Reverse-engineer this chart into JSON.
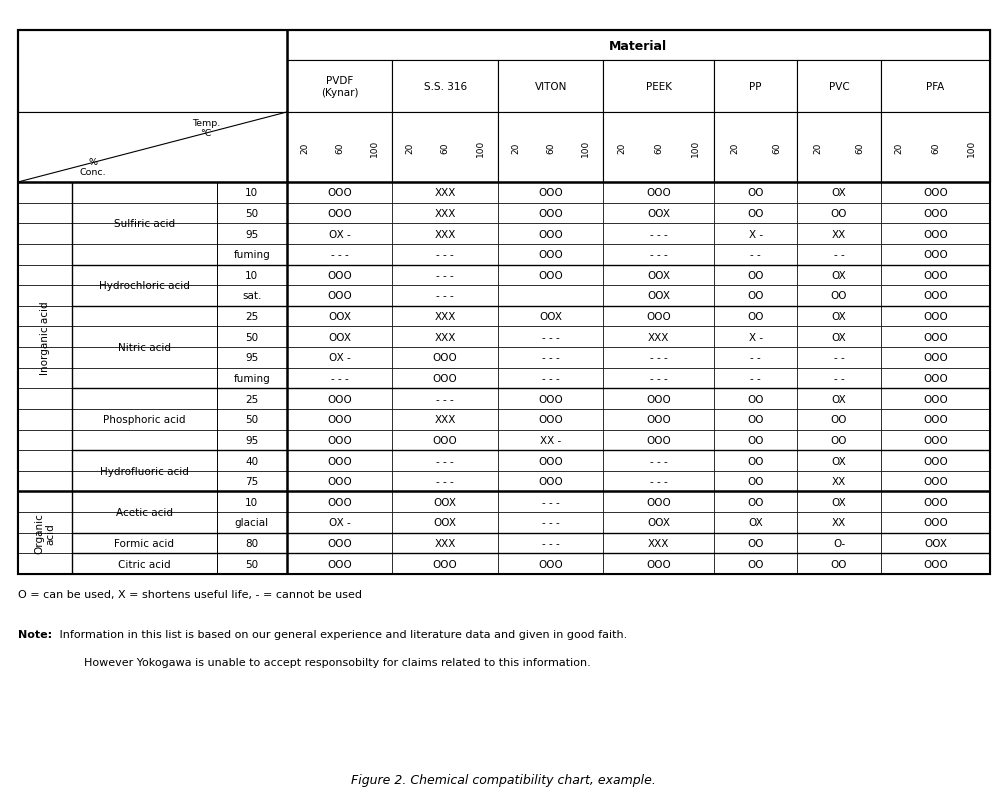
{
  "title": "Figure 2. Chemical compatibility chart, example.",
  "material_header": "Material",
  "materials": [
    "PVDF\n(Kynar)",
    "S.S. 316",
    "VITON",
    "PEEK",
    "PP",
    "PVC",
    "PFA"
  ],
  "temp_ticks": [
    [
      "20",
      "60",
      "100"
    ],
    [
      "20",
      "60",
      "100"
    ],
    [
      "20",
      "60",
      "100"
    ],
    [
      "20",
      "60",
      "100"
    ],
    [
      "20",
      "60"
    ],
    [
      "20",
      "60"
    ],
    [
      "20",
      "60",
      "100"
    ]
  ],
  "row_groups": [
    {
      "group": "Inorganic acid",
      "acids": [
        {
          "name": "Sulfiric acid",
          "rows": [
            {
              "conc": "10",
              "data": [
                "OOO",
                "XXX",
                "OOO",
                "OOO",
                "OO",
                "OX",
                "OOO"
              ]
            },
            {
              "conc": "50",
              "data": [
                "OOO",
                "XXX",
                "OOO",
                "OOX",
                "OO",
                "OO",
                "OOO"
              ]
            },
            {
              "conc": "95",
              "data": [
                "OX -",
                "XXX",
                "OOO",
                "- - -",
                "X -",
                "XX",
                "OOO"
              ]
            },
            {
              "conc": "fuming",
              "data": [
                "- - -",
                "- - -",
                "OOO",
                "- - -",
                "- -",
                "- -",
                "OOO"
              ]
            }
          ]
        },
        {
          "name": "Hydrochloric acid",
          "rows": [
            {
              "conc": "10",
              "data": [
                "OOO",
                "- - -",
                "OOO",
                "OOX",
                "OO",
                "OX",
                "OOO"
              ]
            },
            {
              "conc": "sat.",
              "data": [
                "OOO",
                "- - -",
                "",
                "OOX",
                "OO",
                "OO",
                "OOO"
              ]
            }
          ]
        },
        {
          "name": "Nitric acid",
          "rows": [
            {
              "conc": "25",
              "data": [
                "OOX",
                "XXX",
                "OOX",
                "OOO",
                "OO",
                "OX",
                "OOO"
              ]
            },
            {
              "conc": "50",
              "data": [
                "OOX",
                "XXX",
                "- - -",
                "XXX",
                "X -",
                "OX",
                "OOO"
              ]
            },
            {
              "conc": "95",
              "data": [
                "OX -",
                "OOO",
                "- - -",
                "- - -",
                "- -",
                "- -",
                "OOO"
              ]
            },
            {
              "conc": "fuming",
              "data": [
                "- - -",
                "OOO",
                "- - -",
                "- - -",
                "- -",
                "- -",
                "OOO"
              ]
            }
          ]
        },
        {
          "name": "Phosphoric acid",
          "rows": [
            {
              "conc": "25",
              "data": [
                "OOO",
                "- - -",
                "OOO",
                "OOO",
                "OO",
                "OX",
                "OOO"
              ]
            },
            {
              "conc": "50",
              "data": [
                "OOO",
                "XXX",
                "OOO",
                "OOO",
                "OO",
                "OO",
                "OOO"
              ]
            },
            {
              "conc": "95",
              "data": [
                "OOO",
                "OOO",
                "XX -",
                "OOO",
                "OO",
                "OO",
                "OOO"
              ]
            }
          ]
        },
        {
          "name": "Hydrofluoric acid",
          "rows": [
            {
              "conc": "40",
              "data": [
                "OOO",
                "- - -",
                "OOO",
                "- - -",
                "OO",
                "OX",
                "OOO"
              ]
            },
            {
              "conc": "75",
              "data": [
                "OOO",
                "- - -",
                "OOO",
                "- - -",
                "OO",
                "XX",
                "OOO"
              ]
            }
          ]
        }
      ]
    },
    {
      "group": "Organic\nacid",
      "acids": [
        {
          "name": "Acetic acid",
          "rows": [
            {
              "conc": "10",
              "data": [
                "OOO",
                "OOX",
                "- - -",
                "OOO",
                "OO",
                "OX",
                "OOO"
              ]
            },
            {
              "conc": "glacial",
              "data": [
                "OX -",
                "OOX",
                "- - -",
                "OOX",
                "OX",
                "XX",
                "OOO"
              ]
            }
          ]
        },
        {
          "name": "Formic acid",
          "rows": [
            {
              "conc": "80",
              "data": [
                "OOO",
                "XXX",
                "- - -",
                "XXX",
                "OO",
                "O-",
                "OOX"
              ]
            }
          ]
        },
        {
          "name": "Citric acid",
          "rows": [
            {
              "conc": "50",
              "data": [
                "OOO",
                "OOO",
                "OOO",
                "OOO",
                "OO",
                "OO",
                "OOO"
              ]
            }
          ]
        }
      ]
    }
  ],
  "legend_text": "O = can be used, X = shortens useful life, - = cannot be used",
  "note_bold": "Note:",
  "note_line1": " Information in this list is based on our general experience and literature data and given in good faith.",
  "note_line2": "        However Yokogawa is unable to accept responsobilty for claims related to this information.",
  "bg_color": "#ffffff"
}
